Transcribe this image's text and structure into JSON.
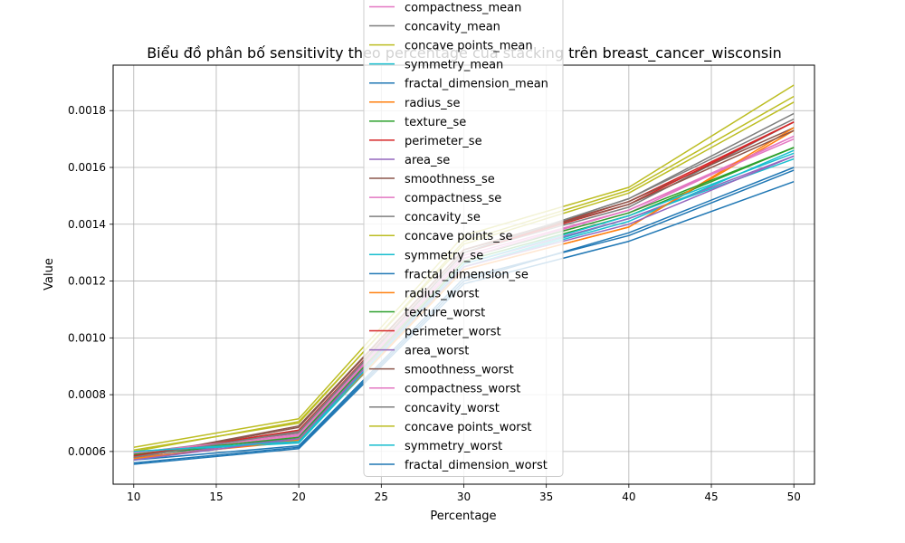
{
  "chart_data": {
    "type": "line",
    "title": "Biểu đồ phân bố sensitivity theo percentage của stacking trên breast_cancer_wisconsin",
    "xlabel": "Percentage",
    "ylabel": "Value",
    "x": [
      10,
      20,
      30,
      40,
      50
    ],
    "xticks": [
      10,
      15,
      20,
      25,
      30,
      35,
      40,
      45,
      50
    ],
    "xticklabels": [
      "10",
      "15",
      "20",
      "25",
      "30",
      "35",
      "40",
      "45",
      "50"
    ],
    "yticks": [
      0.0006,
      0.0008,
      0.001,
      0.0012,
      0.0014,
      0.0016,
      0.0018
    ],
    "yticklabels": [
      "0.0006",
      "0.0008",
      "0.0010",
      "0.0012",
      "0.0014",
      "0.0016",
      "0.0018"
    ],
    "xlim": [
      8.75,
      51.25
    ],
    "ylim": [
      0.000485,
      0.00196
    ],
    "grid": true,
    "legend_position": "top-center",
    "series": [
      {
        "name": "compactness_mean",
        "color": "#e377c2",
        "values": [
          0.000585,
          0.000655,
          0.00128,
          0.00144,
          0.00171
        ]
      },
      {
        "name": "concavity_mean",
        "color": "#7f7f7f",
        "values": [
          0.000595,
          0.000665,
          0.0013,
          0.00146,
          0.00176
        ]
      },
      {
        "name": "concave points_mean",
        "color": "#bcbd22",
        "values": [
          0.000605,
          0.0007,
          0.00134,
          0.00152,
          0.00185
        ]
      },
      {
        "name": "symmetry_mean",
        "color": "#17becf",
        "values": [
          0.00059,
          0.00064,
          0.00125,
          0.00142,
          0.00163
        ]
      },
      {
        "name": "fractal_dimension_mean",
        "color": "#1f77b4",
        "values": [
          0.00057,
          0.00062,
          0.00121,
          0.00136,
          0.00159
        ]
      },
      {
        "name": "radius_se",
        "color": "#ff7f0e",
        "values": [
          0.00058,
          0.000635,
          0.00124,
          0.00139,
          0.00173
        ]
      },
      {
        "name": "texture_se",
        "color": "#2ca02c",
        "values": [
          0.000585,
          0.000645,
          0.00127,
          0.00143,
          0.00167
        ]
      },
      {
        "name": "perimeter_se",
        "color": "#d62728",
        "values": [
          0.00058,
          0.00067,
          0.0013,
          0.00148,
          0.00176
        ]
      },
      {
        "name": "area_se",
        "color": "#9467bd",
        "values": [
          0.000575,
          0.00065,
          0.00126,
          0.00142,
          0.00164
        ]
      },
      {
        "name": "smoothness_se",
        "color": "#8c564b",
        "values": [
          0.00058,
          0.00069,
          0.00131,
          0.00148,
          0.00174
        ]
      },
      {
        "name": "compactness_se",
        "color": "#e377c2",
        "values": [
          0.00059,
          0.00066,
          0.00129,
          0.00145,
          0.00171
        ]
      },
      {
        "name": "concavity_se",
        "color": "#7f7f7f",
        "values": [
          0.000585,
          0.000675,
          0.0013,
          0.00149,
          0.00179
        ]
      },
      {
        "name": "concave points_se",
        "color": "#bcbd22",
        "values": [
          0.000615,
          0.000715,
          0.00136,
          0.00153,
          0.00189
        ]
      },
      {
        "name": "symmetry_se",
        "color": "#17becf",
        "values": [
          0.0006,
          0.00063,
          0.00125,
          0.00141,
          0.00166
        ]
      },
      {
        "name": "fractal_dimension_se",
        "color": "#1f77b4",
        "values": [
          0.000555,
          0.00061,
          0.00119,
          0.00134,
          0.00155
        ]
      },
      {
        "name": "radius_worst",
        "color": "#ff7f0e",
        "values": [
          0.000575,
          0.00064,
          0.00124,
          0.00139,
          0.00174
        ]
      },
      {
        "name": "texture_worst",
        "color": "#2ca02c",
        "values": [
          0.00059,
          0.00065,
          0.00128,
          0.00144,
          0.00167
        ]
      },
      {
        "name": "perimeter_worst",
        "color": "#d62728",
        "values": [
          0.000585,
          0.000675,
          0.0013,
          0.00147,
          0.00176
        ]
      },
      {
        "name": "area_worst",
        "color": "#9467bd",
        "values": [
          0.00057,
          0.000645,
          0.00125,
          0.0014,
          0.00164
        ]
      },
      {
        "name": "smoothness_worst",
        "color": "#8c564b",
        "values": [
          0.00058,
          0.000685,
          0.00131,
          0.00147,
          0.00173
        ]
      },
      {
        "name": "compactness_worst",
        "color": "#e377c2",
        "values": [
          0.000595,
          0.00066,
          0.00128,
          0.00145,
          0.0017
        ]
      },
      {
        "name": "concavity_worst",
        "color": "#7f7f7f",
        "values": [
          0.00058,
          0.00067,
          0.0013,
          0.00149,
          0.00177
        ]
      },
      {
        "name": "concave points_worst",
        "color": "#bcbd22",
        "values": [
          0.0006,
          0.000705,
          0.00133,
          0.00151,
          0.00183
        ]
      },
      {
        "name": "symmetry_worst",
        "color": "#17becf",
        "values": [
          0.0006,
          0.000635,
          0.00126,
          0.00143,
          0.00165
        ]
      },
      {
        "name": "fractal_dimension_worst",
        "color": "#1f77b4",
        "values": [
          0.00056,
          0.000615,
          0.0012,
          0.00137,
          0.0016
        ]
      }
    ]
  }
}
